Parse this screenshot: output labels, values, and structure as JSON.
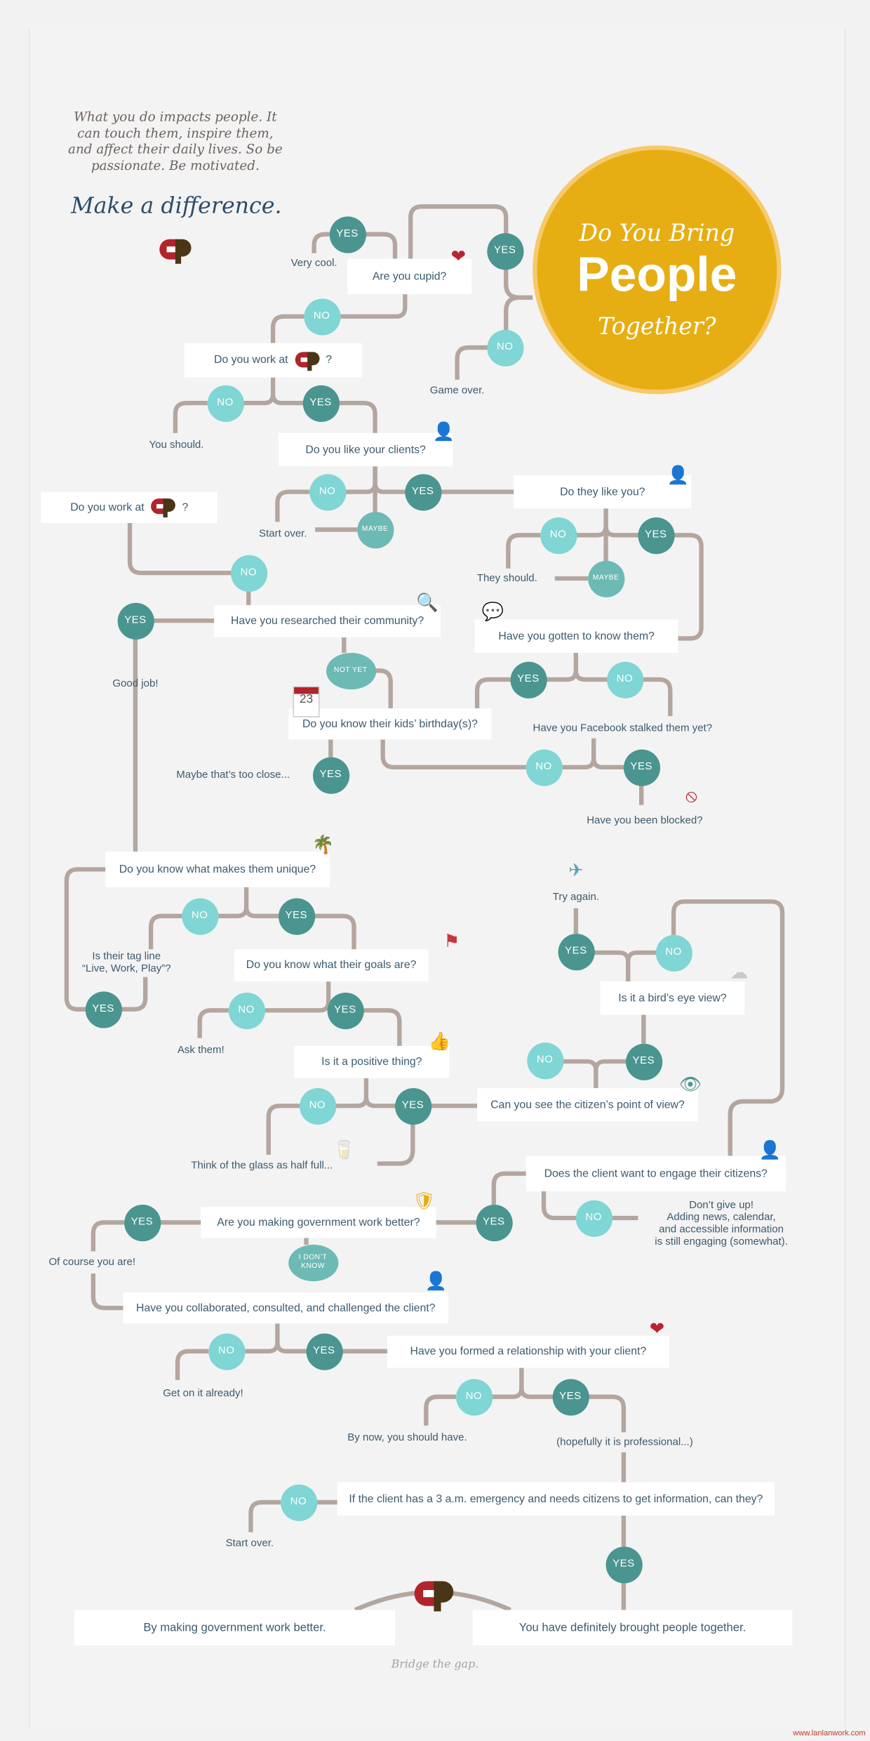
{
  "intro": "What you do impacts people. It can touch them, inspire them, and affect their daily lives. So be passionate. Be motivated.",
  "tagline": "Make a difference.",
  "hero": {
    "line1": "Do You Bring",
    "line2": "People",
    "line3": "Together?"
  },
  "colors": {
    "hero": "#e6ae12",
    "yes": "#4a958f",
    "no": "#7fd6d4",
    "maybe": "#6dbab5",
    "connector": "#b3a69e",
    "text": "#3d5a6e"
  },
  "questions": [
    "Are you cupid?",
    {
      "prefix": "Do you work at",
      "suffix": "?"
    },
    "Do you like your clients?",
    "Do they like you?",
    {
      "prefix": "Do you work at",
      "suffix": "?"
    },
    "Have you researched their community?",
    "Have you gotten to know them?",
    "Do you know their kids’ birthday(s)?",
    "Do you know what makes them unique?",
    "Do you know what their goals are?",
    "Is it a positive thing?",
    "Can you see the citizen’s point of view?",
    "Is it a bird’s eye view?",
    "Does the client want to engage their citizens?",
    "Are you making government work better?",
    "Have you collaborated, consulted, and challenged the client?",
    "Have you formed a relationship with your client?",
    "If the client has a 3 a.m. emergency and needs citizens to get information, can they?",
    "By making government work better.",
    "You have definitely brought people together."
  ],
  "answers": {
    "yes": "YES",
    "no": "NO",
    "maybe": "MAYBE",
    "not_yet": "NOT YET",
    "dont_know": "I DON’T KNOW"
  },
  "notes": [
    "Very cool.",
    "Game over.",
    "You should.",
    "Start over.",
    "They should.",
    "Good job!",
    "Maybe that’s too close...",
    "Have you Facebook stalked them yet?",
    "Have you been blocked?",
    "Try again.",
    "Is their tag line\n“Live, Work, Play”?",
    "Ask them!",
    "Think of the glass as half full...",
    "Don’t give up!\nAdding news, calendar,\nand accessible information\nis still engaging (somewhat).",
    "Of course you are!",
    "Get on it already!",
    "By now, you should have.",
    "(hopefully it is professional...)",
    "Start over."
  ],
  "icons": [
    "heart-arrow-icon",
    "person-plus-icon",
    "person-two-icon",
    "magnifier-icon",
    "chat-bubbles-icon",
    "calendar-icon",
    "palm-tree-icon",
    "flag-icon",
    "thumbs-up-icon",
    "eye-icon",
    "cloud-sun-icon",
    "airplane-icon",
    "no-entry-icon",
    "glass-icon",
    "person-plus-icon",
    "shield-icon",
    "person-chat-icon",
    "heart-plus-icon",
    "info-icon"
  ],
  "calendar_day": "23",
  "footer": "Bridge the gap.",
  "watermark": "www.lanlanwork.com"
}
